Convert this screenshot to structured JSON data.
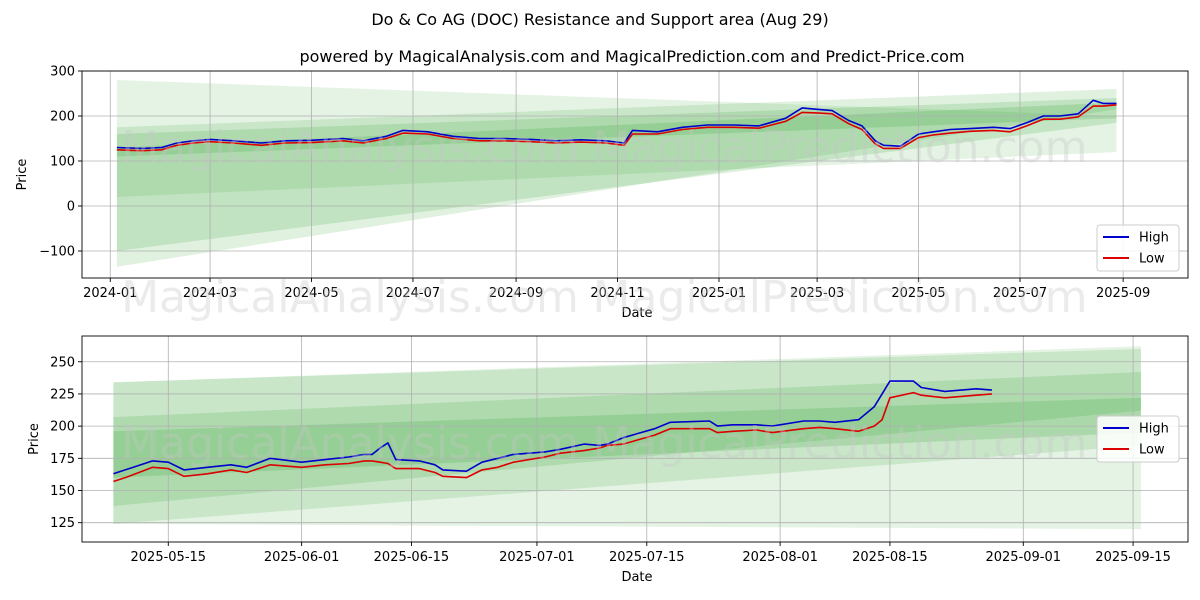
{
  "title": "Do & Co AG (DOC) Resistance and Support area (Aug 29)",
  "subtitle": "powered by MagicalAnalysis.com and MagicalPrediction.com and Predict-Price.com",
  "watermarks": [
    "MagicalAnalysis.com",
    "MagicalPrediction.com"
  ],
  "colors": {
    "high": "#0000cc",
    "low": "#dd0000",
    "band": "#2ca02c",
    "grid": "#b0b0b0"
  },
  "chart_data": [
    {
      "type": "line",
      "xlabel": "Date",
      "ylabel": "Price",
      "ylim": [
        -160,
        300
      ],
      "xlim": [
        "2023-12-15",
        "2025-10-10"
      ],
      "xticks": [
        "2024-01",
        "2024-03",
        "2024-05",
        "2024-07",
        "2024-09",
        "2024-11",
        "2025-01",
        "2025-03",
        "2025-05",
        "2025-07",
        "2025-09"
      ],
      "xtick_dates": [
        "2024-01-01",
        "2024-03-01",
        "2024-05-01",
        "2024-07-01",
        "2024-09-01",
        "2024-11-01",
        "2025-01-01",
        "2025-03-01",
        "2025-05-01",
        "2025-07-01",
        "2025-09-01"
      ],
      "yticks": [
        -100,
        0,
        100,
        200,
        300
      ],
      "ytick_labels": [
        "−100",
        "0",
        "100",
        "200",
        "300"
      ],
      "grid": true,
      "legend": "bottom-right",
      "legend_entries": [
        "High",
        "Low"
      ],
      "bands": [
        {
          "x": [
            "2024-01-05",
            "2025-08-28"
          ],
          "upper": [
            280,
            200
          ],
          "lower": [
            20,
            120
          ]
        },
        {
          "x": [
            "2024-01-05",
            "2025-08-28"
          ],
          "upper": [
            175,
            260
          ],
          "lower": [
            -135,
            215
          ]
        },
        {
          "x": [
            "2024-01-05",
            "2025-08-28"
          ],
          "upper": [
            160,
            240
          ],
          "lower": [
            -100,
            185
          ]
        },
        {
          "x": [
            "2024-01-05",
            "2025-08-28"
          ],
          "upper": [
            130,
            230
          ],
          "lower": [
            110,
            195
          ]
        }
      ],
      "series": [
        {
          "name": "High",
          "x": [
            "2024-01-05",
            "2024-01-20",
            "2024-02-01",
            "2024-02-10",
            "2024-02-20",
            "2024-03-01",
            "2024-03-15",
            "2024-04-01",
            "2024-04-15",
            "2024-05-01",
            "2024-05-20",
            "2024-06-01",
            "2024-06-15",
            "2024-06-25",
            "2024-07-10",
            "2024-07-25",
            "2024-08-10",
            "2024-08-25",
            "2024-09-10",
            "2024-09-25",
            "2024-10-10",
            "2024-10-25",
            "2024-11-05",
            "2024-11-10",
            "2024-11-25",
            "2024-12-10",
            "2024-12-25",
            "2025-01-10",
            "2025-01-25",
            "2025-02-10",
            "2025-02-20",
            "2025-03-01",
            "2025-03-10",
            "2025-03-20",
            "2025-03-28",
            "2025-04-05",
            "2025-04-10",
            "2025-04-20",
            "2025-05-01",
            "2025-05-10",
            "2025-05-20",
            "2025-06-01",
            "2025-06-15",
            "2025-06-25",
            "2025-07-05",
            "2025-07-15",
            "2025-07-25",
            "2025-08-05",
            "2025-08-14",
            "2025-08-20",
            "2025-08-28"
          ],
          "values": [
            130,
            128,
            130,
            140,
            145,
            148,
            145,
            140,
            145,
            146,
            150,
            145,
            155,
            168,
            165,
            155,
            150,
            150,
            148,
            145,
            147,
            145,
            140,
            168,
            165,
            175,
            180,
            180,
            178,
            195,
            218,
            215,
            212,
            190,
            178,
            145,
            135,
            133,
            160,
            165,
            170,
            172,
            175,
            172,
            185,
            200,
            200,
            205,
            235,
            228,
            228
          ]
        },
        {
          "name": "Low",
          "x": [
            "2024-01-05",
            "2024-01-20",
            "2024-02-01",
            "2024-02-10",
            "2024-02-20",
            "2024-03-01",
            "2024-03-15",
            "2024-04-01",
            "2024-04-15",
            "2024-05-01",
            "2024-05-20",
            "2024-06-01",
            "2024-06-15",
            "2024-06-25",
            "2024-07-10",
            "2024-07-25",
            "2024-08-10",
            "2024-08-25",
            "2024-09-10",
            "2024-09-25",
            "2024-10-10",
            "2024-10-25",
            "2024-11-05",
            "2024-11-10",
            "2024-11-25",
            "2024-12-10",
            "2024-12-25",
            "2025-01-10",
            "2025-01-25",
            "2025-02-10",
            "2025-02-20",
            "2025-03-01",
            "2025-03-10",
            "2025-03-20",
            "2025-03-28",
            "2025-04-05",
            "2025-04-10",
            "2025-04-20",
            "2025-05-01",
            "2025-05-10",
            "2025-05-20",
            "2025-06-01",
            "2025-06-15",
            "2025-06-25",
            "2025-07-05",
            "2025-07-15",
            "2025-07-25",
            "2025-08-05",
            "2025-08-14",
            "2025-08-20",
            "2025-08-28"
          ],
          "values": [
            125,
            123,
            125,
            135,
            140,
            143,
            140,
            135,
            140,
            141,
            145,
            140,
            150,
            162,
            160,
            150,
            145,
            145,
            143,
            140,
            142,
            140,
            135,
            160,
            160,
            170,
            175,
            175,
            173,
            188,
            208,
            207,
            205,
            183,
            170,
            138,
            128,
            128,
            152,
            158,
            162,
            166,
            168,
            165,
            178,
            193,
            193,
            198,
            222,
            222,
            225
          ]
        }
      ]
    },
    {
      "type": "line",
      "xlabel": "Date",
      "ylabel": "Price",
      "ylim": [
        110,
        270
      ],
      "xlim": [
        "2025-05-04",
        "2025-09-22"
      ],
      "xticks": [
        "2025-05-15",
        "2025-06-01",
        "2025-06-15",
        "2025-07-01",
        "2025-07-15",
        "2025-08-01",
        "2025-08-15",
        "2025-09-01",
        "2025-09-15"
      ],
      "yticks": [
        125,
        150,
        175,
        200,
        225,
        250
      ],
      "ytick_labels": [
        "125",
        "150",
        "175",
        "200",
        "225",
        "250"
      ],
      "grid": true,
      "legend": "right",
      "legend_entries": [
        "High",
        "Low"
      ],
      "bands": [
        {
          "x": [
            "2025-05-08",
            "2025-09-16"
          ],
          "upper": [
            234,
            262
          ],
          "lower": [
            124,
            120
          ]
        },
        {
          "x": [
            "2025-05-08",
            "2025-09-16"
          ],
          "upper": [
            234,
            260
          ],
          "lower": [
            124,
            185
          ]
        },
        {
          "x": [
            "2025-05-08",
            "2025-09-16"
          ],
          "upper": [
            207,
            242
          ],
          "lower": [
            138,
            212
          ]
        },
        {
          "x": [
            "2025-05-08",
            "2025-09-16"
          ],
          "upper": [
            196,
            222
          ],
          "lower": [
            160,
            195
          ]
        }
      ],
      "series": [
        {
          "name": "High",
          "x": [
            "2025-05-08",
            "2025-05-10",
            "2025-05-13",
            "2025-05-15",
            "2025-05-17",
            "2025-05-20",
            "2025-05-23",
            "2025-05-25",
            "2025-05-28",
            "2025-06-01",
            "2025-06-04",
            "2025-06-07",
            "2025-06-09",
            "2025-06-10",
            "2025-06-11",
            "2025-06-12",
            "2025-06-13",
            "2025-06-16",
            "2025-06-18",
            "2025-06-19",
            "2025-06-22",
            "2025-06-24",
            "2025-06-26",
            "2025-06-28",
            "2025-07-02",
            "2025-07-04",
            "2025-07-07",
            "2025-07-09",
            "2025-07-10",
            "2025-07-12",
            "2025-07-16",
            "2025-07-18",
            "2025-07-23",
            "2025-07-24",
            "2025-07-26",
            "2025-07-29",
            "2025-07-31",
            "2025-08-04",
            "2025-08-06",
            "2025-08-08",
            "2025-08-11",
            "2025-08-13",
            "2025-08-14",
            "2025-08-15",
            "2025-08-18",
            "2025-08-19",
            "2025-08-22",
            "2025-08-26",
            "2025-08-28"
          ],
          "values": [
            163,
            167,
            173,
            172,
            166,
            168,
            170,
            168,
            175,
            172,
            174,
            176,
            178,
            178,
            183,
            187,
            174,
            173,
            170,
            166,
            165,
            172,
            175,
            178,
            180,
            182,
            186,
            185,
            186,
            191,
            198,
            203,
            204,
            200,
            201,
            201,
            200,
            204,
            204,
            203,
            205,
            215,
            225,
            235,
            235,
            230,
            227,
            229,
            228
          ]
        },
        {
          "name": "Low",
          "x": [
            "2025-05-08",
            "2025-05-10",
            "2025-05-13",
            "2025-05-15",
            "2025-05-17",
            "2025-05-20",
            "2025-05-23",
            "2025-05-25",
            "2025-05-28",
            "2025-06-01",
            "2025-06-04",
            "2025-06-07",
            "2025-06-09",
            "2025-06-10",
            "2025-06-11",
            "2025-06-12",
            "2025-06-13",
            "2025-06-16",
            "2025-06-18",
            "2025-06-19",
            "2025-06-22",
            "2025-06-24",
            "2025-06-26",
            "2025-06-28",
            "2025-07-02",
            "2025-07-04",
            "2025-07-07",
            "2025-07-09",
            "2025-07-10",
            "2025-07-12",
            "2025-07-16",
            "2025-07-18",
            "2025-07-23",
            "2025-07-24",
            "2025-07-26",
            "2025-07-29",
            "2025-07-31",
            "2025-08-04",
            "2025-08-06",
            "2025-08-08",
            "2025-08-11",
            "2025-08-13",
            "2025-08-14",
            "2025-08-15",
            "2025-08-18",
            "2025-08-19",
            "2025-08-22",
            "2025-08-26",
            "2025-08-28"
          ],
          "values": [
            157,
            161,
            168,
            167,
            161,
            163,
            166,
            164,
            170,
            168,
            170,
            171,
            173,
            173,
            172,
            171,
            167,
            167,
            164,
            161,
            160,
            166,
            168,
            172,
            176,
            179,
            181,
            183,
            185,
            186,
            193,
            198,
            198,
            195,
            196,
            197,
            195,
            198,
            199,
            198,
            196,
            200,
            205,
            222,
            226,
            224,
            222,
            224,
            225
          ]
        }
      ]
    }
  ]
}
